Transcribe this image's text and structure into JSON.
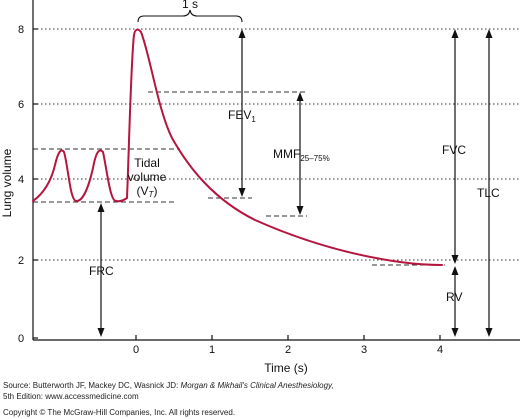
{
  "figure": {
    "y_axis_title": "Lung volume",
    "x_axis_title": "Time (s)",
    "y_ticks": [
      "0",
      "2",
      "4",
      "6",
      "8"
    ],
    "x_ticks": [
      "0",
      "1",
      "2",
      "3",
      "4"
    ],
    "colors": {
      "trace": "#b5163f",
      "axis": "#111111",
      "guide": "#333333"
    },
    "labels": {
      "one_second": "1 s",
      "fev": "FEV",
      "fev_sub": "1",
      "mmf": "MMF",
      "mmf_sub": "25–75%",
      "tidal_line1": "Tidal",
      "tidal_line2": "volume",
      "tidal_line3_open": "(V",
      "tidal_line3_sub": "T",
      "tidal_line3_close": ")",
      "frc": "FRC",
      "fvc": "FVC",
      "tlc": "TLC",
      "rv": "RV"
    }
  },
  "source": {
    "prefix": "Source: Butterworth JF, Mackey DC, Wasnick JD: ",
    "title": "Morgan & Mikhail's Clinical Anesthesiology,",
    "edition": "5th Edition: www.accessmedicine.com",
    "copyright": "Copyright © The McGraw-Hill Companies, Inc. All rights reserved."
  }
}
